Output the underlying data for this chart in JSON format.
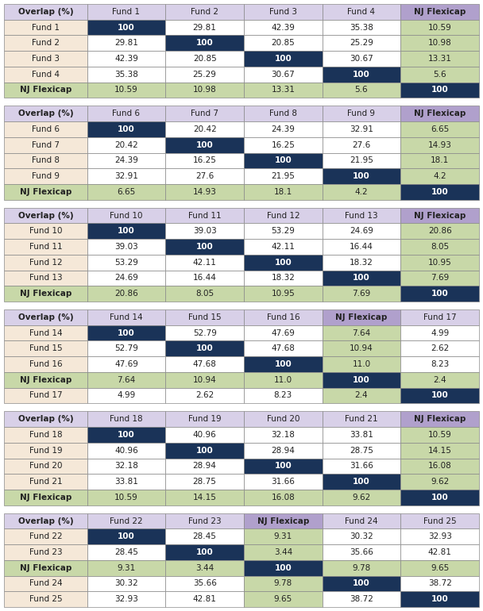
{
  "tables": [
    {
      "header": [
        "Overlap (%)",
        "Fund 1",
        "Fund 2",
        "Fund 3",
        "Fund 4",
        "NJ Flexicap"
      ],
      "rows": [
        [
          "Fund 1",
          "100",
          "29.81",
          "42.39",
          "35.38",
          "10.59"
        ],
        [
          "Fund 2",
          "29.81",
          "100",
          "20.85",
          "25.29",
          "10.98"
        ],
        [
          "Fund 3",
          "42.39",
          "20.85",
          "100",
          "30.67",
          "13.31"
        ],
        [
          "Fund 4",
          "35.38",
          "25.29",
          "30.67",
          "100",
          "5.6"
        ],
        [
          "NJ Flexicap",
          "10.59",
          "10.98",
          "13.31",
          "5.6",
          "100"
        ]
      ],
      "nj_row": 4,
      "nj_col": 5,
      "header_nj_col": 5
    },
    {
      "header": [
        "Overlap (%)",
        "Fund 6",
        "Fund 7",
        "Fund 8",
        "Fund 9",
        "NJ Flexicap"
      ],
      "rows": [
        [
          "Fund 6",
          "100",
          "20.42",
          "24.39",
          "32.91",
          "6.65"
        ],
        [
          "Fund 7",
          "20.42",
          "100",
          "16.25",
          "27.6",
          "14.93"
        ],
        [
          "Fund 8",
          "24.39",
          "16.25",
          "100",
          "21.95",
          "18.1"
        ],
        [
          "Fund 9",
          "32.91",
          "27.6",
          "21.95",
          "100",
          "4.2"
        ],
        [
          "NJ Flexicap",
          "6.65",
          "14.93",
          "18.1",
          "4.2",
          "100"
        ]
      ],
      "nj_row": 4,
      "nj_col": 5,
      "header_nj_col": 5
    },
    {
      "header": [
        "Overlap (%)",
        "Fund 10",
        "Fund 11",
        "Fund 12",
        "Fund 13",
        "NJ Flexicap"
      ],
      "rows": [
        [
          "Fund 10",
          "100",
          "39.03",
          "53.29",
          "24.69",
          "20.86"
        ],
        [
          "Fund 11",
          "39.03",
          "100",
          "42.11",
          "16.44",
          "8.05"
        ],
        [
          "Fund 12",
          "53.29",
          "42.11",
          "100",
          "18.32",
          "10.95"
        ],
        [
          "Fund 13",
          "24.69",
          "16.44",
          "18.32",
          "100",
          "7.69"
        ],
        [
          "NJ Flexicap",
          "20.86",
          "8.05",
          "10.95",
          "7.69",
          "100"
        ]
      ],
      "nj_row": 4,
      "nj_col": 5,
      "header_nj_col": 5
    },
    {
      "header": [
        "Overlap (%)",
        "Fund 14",
        "Fund 15",
        "Fund 16",
        "NJ Flexicap",
        "Fund 17"
      ],
      "rows": [
        [
          "Fund 14",
          "100",
          "52.79",
          "47.69",
          "7.64",
          "4.99"
        ],
        [
          "Fund 15",
          "52.79",
          "100",
          "47.68",
          "10.94",
          "2.62"
        ],
        [
          "Fund 16",
          "47.69",
          "47.68",
          "100",
          "11.0",
          "8.23"
        ],
        [
          "NJ Flexicap",
          "7.64",
          "10.94",
          "11.0",
          "100",
          "2.4"
        ],
        [
          "Fund 17",
          "4.99",
          "2.62",
          "8.23",
          "2.4",
          "100"
        ]
      ],
      "nj_row": 3,
      "nj_col": 4,
      "header_nj_col": 4
    },
    {
      "header": [
        "Overlap (%)",
        "Fund 18",
        "Fund 19",
        "Fund 20",
        "Fund 21",
        "NJ Flexicap"
      ],
      "rows": [
        [
          "Fund 18",
          "100",
          "40.96",
          "32.18",
          "33.81",
          "10.59"
        ],
        [
          "Fund 19",
          "40.96",
          "100",
          "28.94",
          "28.75",
          "14.15"
        ],
        [
          "Fund 20",
          "32.18",
          "28.94",
          "100",
          "31.66",
          "16.08"
        ],
        [
          "Fund 21",
          "33.81",
          "28.75",
          "31.66",
          "100",
          "9.62"
        ],
        [
          "NJ Flexicap",
          "10.59",
          "14.15",
          "16.08",
          "9.62",
          "100"
        ]
      ],
      "nj_row": 4,
      "nj_col": 5,
      "header_nj_col": 5
    },
    {
      "header": [
        "Overlap (%)",
        "Fund 22",
        "Fund 23",
        "NJ Flexicap",
        "Fund 24",
        "Fund 25"
      ],
      "rows": [
        [
          "Fund 22",
          "100",
          "28.45",
          "9.31",
          "30.32",
          "32.93"
        ],
        [
          "Fund 23",
          "28.45",
          "100",
          "3.44",
          "35.66",
          "42.81"
        ],
        [
          "NJ Flexicap",
          "9.31",
          "3.44",
          "100",
          "9.78",
          "9.65"
        ],
        [
          "Fund 24",
          "30.32",
          "35.66",
          "9.78",
          "100",
          "38.72"
        ],
        [
          "Fund 25",
          "32.93",
          "42.81",
          "9.65",
          "38.72",
          "100"
        ]
      ],
      "nj_row": 2,
      "nj_col": 3,
      "header_nj_col": 3
    }
  ],
  "colors": {
    "header_bg": "#d8d0e8",
    "header_nj_bg": "#b0a0cc",
    "row_header_normal_bg": "#f5e8d8",
    "row_header_nj_bg": "#c8d8a8",
    "cell_nj_bg": "#c8d8a8",
    "cell_diag_bg": "#1a3358",
    "cell_diag_fg": "#ffffff",
    "cell_default_bg": "#ffffff",
    "cell_default_fg": "#222222",
    "border_color": "#888888",
    "fig_bg": "#ffffff"
  },
  "font_size": 7.5,
  "header_font_size": 7.5
}
